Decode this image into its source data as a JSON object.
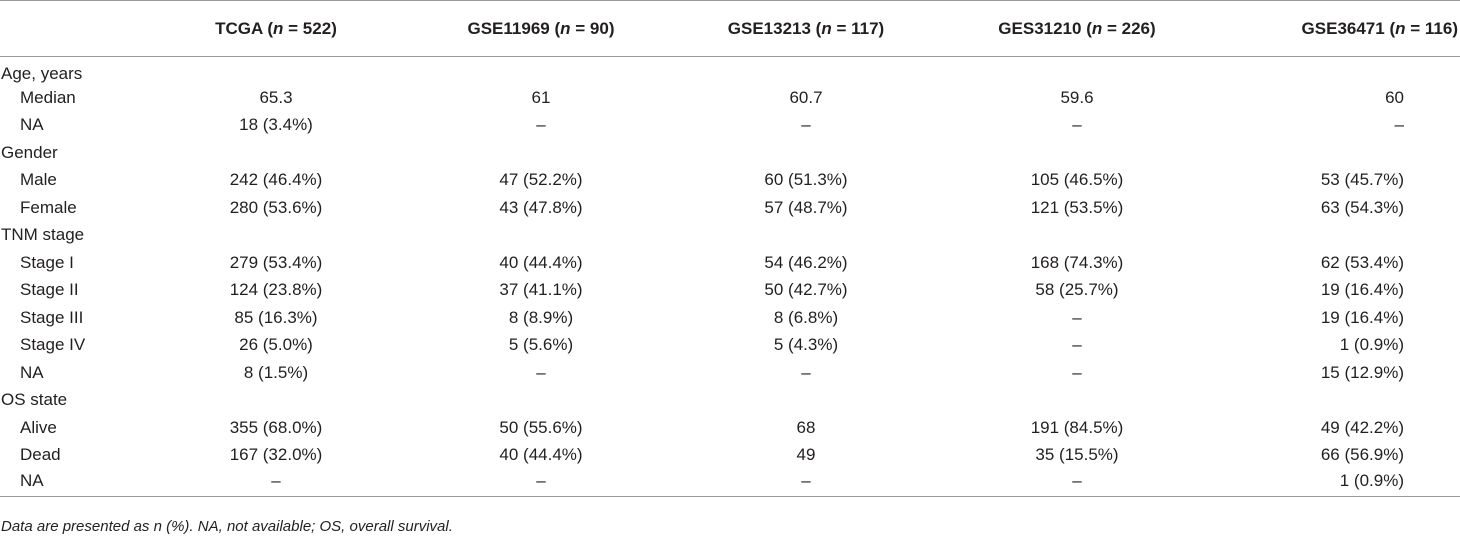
{
  "columns": [
    {
      "name": "TCGA",
      "n_label": "n",
      "n_value": " = 522"
    },
    {
      "name": "GSE11969",
      "n_label": "n",
      "n_value": " = 90"
    },
    {
      "name": "GSE13213",
      "n_label": "n",
      "n_value": " = 117"
    },
    {
      "name": "GES31210",
      "n_label": "n",
      "n_value": " = 226"
    },
    {
      "name": "GSE36471",
      "n_label": "n",
      "n_value": " = 116"
    }
  ],
  "rows": [
    {
      "label": "Age, years",
      "group": true,
      "values": [
        "",
        "",
        "",
        "",
        ""
      ]
    },
    {
      "label": "Median",
      "group": false,
      "values": [
        "65.3",
        "61",
        "60.7",
        "59.6",
        "60"
      ]
    },
    {
      "label": "NA",
      "group": false,
      "values": [
        "18 (3.4%)",
        "–",
        "–",
        "–",
        "–"
      ]
    },
    {
      "label": "Gender",
      "group": true,
      "values": [
        "",
        "",
        "",
        "",
        ""
      ]
    },
    {
      "label": "Male",
      "group": false,
      "values": [
        "242 (46.4%)",
        "47 (52.2%)",
        "60 (51.3%)",
        "105 (46.5%)",
        "53 (45.7%)"
      ]
    },
    {
      "label": "Female",
      "group": false,
      "values": [
        "280 (53.6%)",
        "43 (47.8%)",
        "57 (48.7%)",
        "121 (53.5%)",
        "63 (54.3%)"
      ]
    },
    {
      "label": "TNM stage",
      "group": true,
      "values": [
        "",
        "",
        "",
        "",
        ""
      ]
    },
    {
      "label": "Stage I",
      "group": false,
      "values": [
        "279 (53.4%)",
        "40 (44.4%)",
        "54 (46.2%)",
        "168 (74.3%)",
        "62 (53.4%)"
      ]
    },
    {
      "label": "Stage II",
      "group": false,
      "values": [
        "124 (23.8%)",
        "37 (41.1%)",
        "50 (42.7%)",
        "58 (25.7%)",
        "19 (16.4%)"
      ]
    },
    {
      "label": "Stage III",
      "group": false,
      "values": [
        "85 (16.3%)",
        "8 (8.9%)",
        "8 (6.8%)",
        "–",
        "19 (16.4%)"
      ]
    },
    {
      "label": "Stage IV",
      "group": false,
      "values": [
        "26 (5.0%)",
        "5 (5.6%)",
        "5 (4.3%)",
        "–",
        "1 (0.9%)"
      ]
    },
    {
      "label": "NA",
      "group": false,
      "values": [
        "8 (1.5%)",
        "–",
        "–",
        "–",
        "15 (12.9%)"
      ]
    },
    {
      "label": "OS state",
      "group": true,
      "values": [
        "",
        "",
        "",
        "",
        ""
      ]
    },
    {
      "label": "Alive",
      "group": false,
      "values": [
        "355 (68.0%)",
        "50 (55.6%)",
        "68",
        "191 (84.5%)",
        "49 (42.2%)"
      ]
    },
    {
      "label": "Dead",
      "group": false,
      "values": [
        "167 (32.0%)",
        "40 (44.4%)",
        "49",
        "35 (15.5%)",
        "66 (56.9%)"
      ]
    },
    {
      "label": "NA",
      "group": false,
      "values": [
        "–",
        "–",
        "–",
        "–",
        "1 (0.9%)"
      ]
    }
  ],
  "footnote": "Data are presented as n (%). NA, not available; OS, overall survival."
}
